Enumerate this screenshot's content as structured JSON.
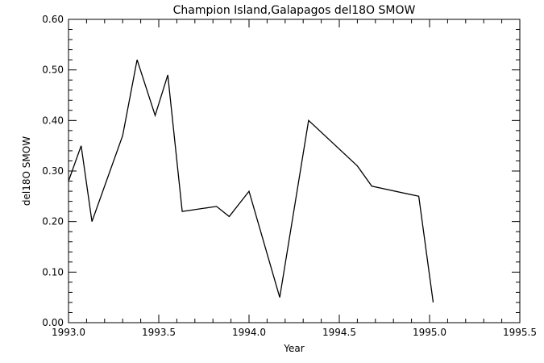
{
  "chart_data": {
    "type": "line",
    "title": "Champion Island,Galapagos del18O SMOW",
    "xlabel": "Year",
    "ylabel": "del18O SMOW",
    "xlim": [
      1993.0,
      1995.5
    ],
    "ylim": [
      0.0,
      0.6
    ],
    "xticks": [
      "1993.0",
      "1993.5",
      "1994.0",
      "1994.5",
      "1995.0",
      "1995.5"
    ],
    "yticks": [
      "0.00",
      "0.10",
      "0.20",
      "0.30",
      "0.40",
      "0.50",
      "0.60"
    ],
    "grid": false,
    "series": [
      {
        "color": "#000000",
        "x": [
          1993.0,
          1993.07,
          1993.13,
          1993.3,
          1993.38,
          1993.48,
          1993.55,
          1993.63,
          1993.82,
          1993.89,
          1994.0,
          1994.17,
          1994.33,
          1994.6,
          1994.68,
          1994.94,
          1995.02
        ],
        "y": [
          0.28,
          0.35,
          0.2,
          0.37,
          0.52,
          0.41,
          0.49,
          0.22,
          0.23,
          0.21,
          0.26,
          0.05,
          0.4,
          0.31,
          0.27,
          0.25,
          0.04
        ]
      }
    ]
  }
}
